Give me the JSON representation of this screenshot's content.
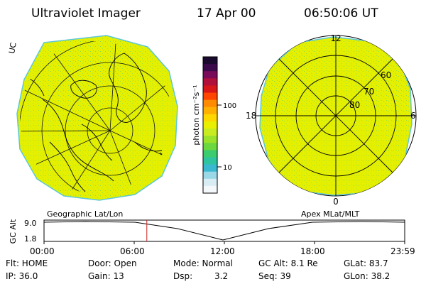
{
  "header": {
    "title": "Ultraviolet Imager",
    "date": "17 Apr 00",
    "time": "06:50:06 UT"
  },
  "left_panel": {
    "label": "Geographic Lat/Lon",
    "corner_mark": "UC"
  },
  "right_panel": {
    "label": "Apex MLat/MLT",
    "mlt_labels": {
      "top": "12",
      "left": "18",
      "right": "6",
      "bottom": "0"
    },
    "lat_labels": [
      "60",
      "70",
      "80"
    ]
  },
  "colorbar": {
    "unit_label": "photon cm⁻²s⁻¹",
    "ticks": [
      "100",
      "10"
    ],
    "colors": [
      "#1a0a2e",
      "#3b0a4a",
      "#7a0a5a",
      "#b0103a",
      "#d81818",
      "#ff4500",
      "#ff8c00",
      "#ffb000",
      "#ffd700",
      "#e8f000",
      "#c8ec20",
      "#9be22a",
      "#6cd840",
      "#3ccc70",
      "#2ec4a0",
      "#3ab8d0",
      "#9ad8e8",
      "#d8ecf4",
      "#f4f8fb"
    ]
  },
  "altitude_plot": {
    "ylabel": "GC Alt",
    "yticks": [
      "9.0",
      "1.8"
    ],
    "xticks": [
      "00:00",
      "06:00",
      "12:00",
      "18:00",
      "23:59"
    ],
    "current_time_fraction": 0.285
  },
  "info": {
    "row1": {
      "flt": "Flt: HOME",
      "door": "Door: Open",
      "mode": "Mode: Normal",
      "gcalt": "GC Alt: 8.1 Re",
      "glat": "GLat: 83.7"
    },
    "row2": {
      "ip": "IP: 36.0",
      "gain": "Gain: 13",
      "dsp_label": "Dsp:",
      "dsp_value": "3.2",
      "seq": "Seq: 39",
      "glon": "GLon: 38.2"
    }
  },
  "colors": {
    "auroral_fill": "#e4f000",
    "speckle": "#7ed84a",
    "edge": "#5cc8d8",
    "time_marker": "#cc2222"
  }
}
